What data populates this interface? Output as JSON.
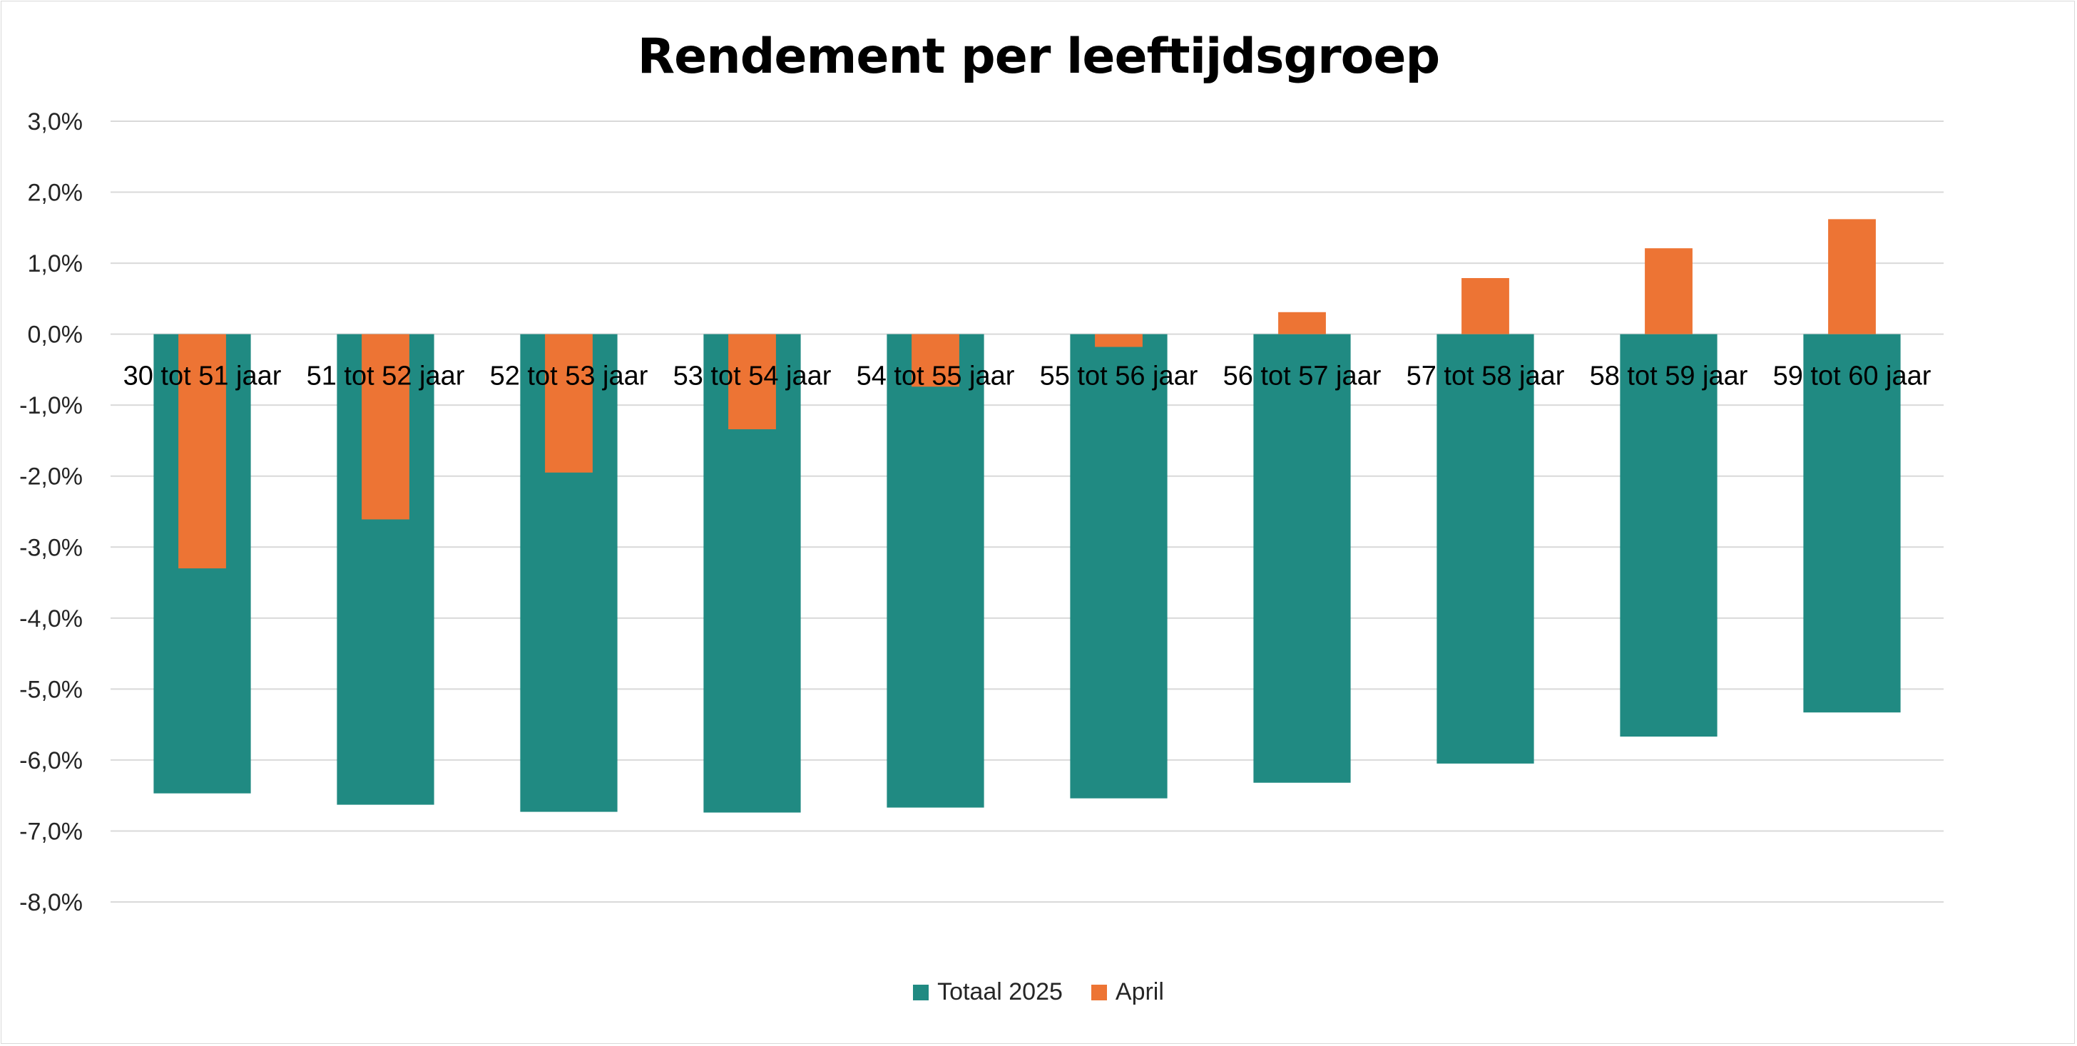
{
  "chart_data": {
    "type": "bar",
    "title": "Rendement per leeftijdsgroep",
    "categories": [
      "30 tot 51 jaar",
      "51 tot 52 jaar",
      "52 tot 53 jaar",
      "53 tot 54 jaar",
      "54 tot 55 jaar",
      "55 tot 56 jaar",
      "56 tot 57 jaar",
      "57 tot 58 jaar",
      "58 tot 59 jaar",
      "59 tot 60 jaar"
    ],
    "series": [
      {
        "name": "Totaal 2025",
        "color": "#208a82",
        "values": [
          -6.47,
          -6.63,
          -6.73,
          -6.74,
          -6.67,
          -6.54,
          -6.32,
          -6.05,
          -5.67,
          -5.33
        ]
      },
      {
        "name": "April",
        "color": "#ed7434",
        "values": [
          -3.3,
          -2.61,
          -1.95,
          -1.34,
          -0.74,
          -0.18,
          0.31,
          0.79,
          1.21,
          1.62
        ]
      }
    ],
    "ylim": [
      -8,
      3
    ],
    "yticks": [
      "3,0%",
      "2,0%",
      "1,0%",
      "0,0%",
      "-1,0%",
      "-2,0%",
      "-3,0%",
      "-4,0%",
      "-5,0%",
      "-6,0%",
      "-7,0%",
      "-8,0%"
    ],
    "grid": true,
    "legend_position": "bottom"
  }
}
